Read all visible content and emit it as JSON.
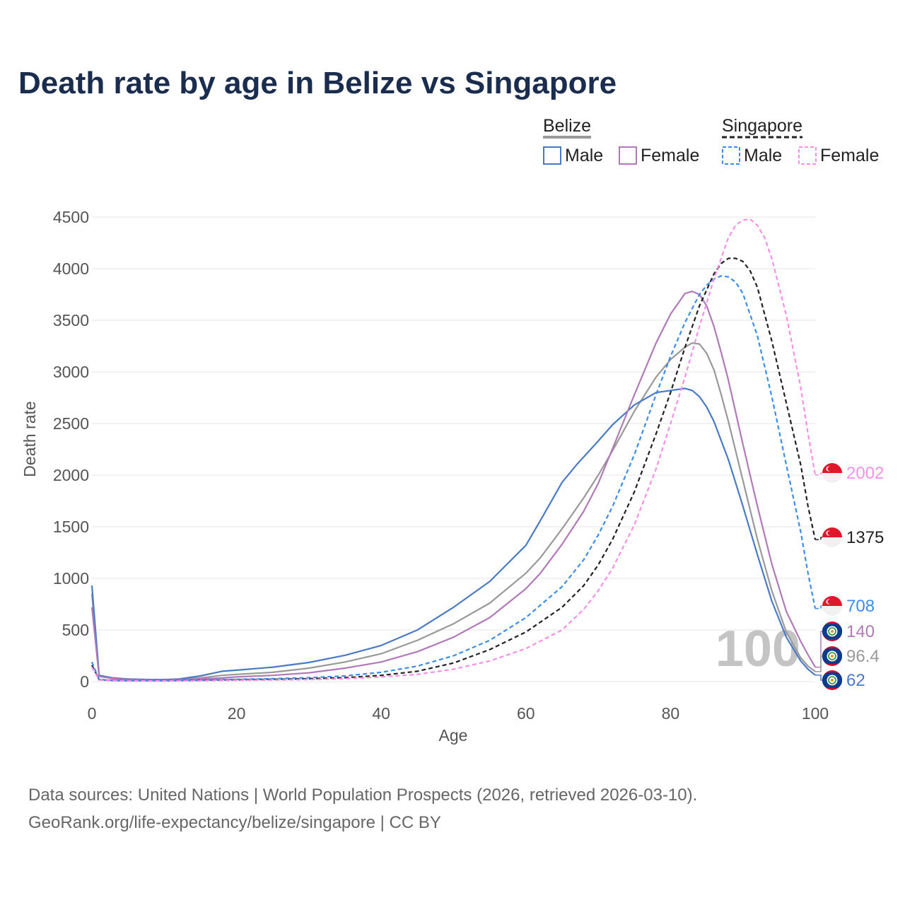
{
  "title": "Death rate by age in Belize vs Singapore",
  "source_line1": "Data sources: United Nations | World Population Prospects (2026, retrieved 2026-03-10).",
  "source_line2": "GeoRank.org/life-expectancy/belize/singapore | CC BY",
  "watermark": "100",
  "legend": {
    "belize": "Belize",
    "singapore": "Singapore",
    "male": "Male",
    "female": "Female"
  },
  "colors": {
    "belize_male": "#4a7ac4",
    "belize_female": "#b07ab8",
    "belize_total": "#999999",
    "singapore_male": "#3d8de8",
    "singapore_female": "#f590e8",
    "singapore_total": "#222222",
    "grid": "#e6e6e6",
    "title": "#1b2d4f"
  },
  "chart_data": {
    "type": "line",
    "title": "Death rate by age in Belize vs Singapore",
    "xlabel": "Age",
    "ylabel": "Death rate",
    "xlim": [
      0,
      100
    ],
    "ylim": [
      0,
      4500
    ],
    "xticks": [
      0,
      20,
      40,
      60,
      80,
      100
    ],
    "yticks": [
      0,
      500,
      1000,
      1500,
      2000,
      2500,
      3000,
      3500,
      4000,
      4500
    ],
    "grid": true,
    "series": [
      {
        "id": "belize_total",
        "name": "Belize (total)",
        "country": "Belize",
        "sex": "Total",
        "style": "solid",
        "end_label": "96.4",
        "x": [
          0,
          1,
          3,
          5,
          8,
          10,
          12,
          15,
          18,
          20,
          25,
          30,
          35,
          40,
          45,
          50,
          55,
          60,
          62,
          65,
          68,
          70,
          72,
          75,
          78,
          80,
          82,
          83,
          84,
          85,
          86,
          87,
          88,
          90,
          92,
          94,
          96,
          98,
          99,
          100
        ],
        "y": [
          850,
          55,
          30,
          22,
          18,
          18,
          20,
          35,
          60,
          70,
          90,
          130,
          190,
          270,
          400,
          560,
          760,
          1050,
          1200,
          1480,
          1780,
          2000,
          2240,
          2620,
          2950,
          3120,
          3240,
          3280,
          3270,
          3180,
          3020,
          2780,
          2520,
          1950,
          1380,
          880,
          480,
          230,
          150,
          96.4
        ]
      },
      {
        "id": "belize_male",
        "name": "Belize Male",
        "country": "Belize",
        "sex": "Male",
        "style": "solid",
        "end_label": "62",
        "x": [
          0,
          1,
          3,
          5,
          8,
          10,
          12,
          15,
          18,
          20,
          25,
          30,
          35,
          40,
          45,
          50,
          55,
          60,
          62,
          65,
          67,
          70,
          72,
          75,
          78,
          80,
          82,
          83,
          84,
          85,
          86,
          88,
          90,
          92,
          94,
          96,
          98,
          99,
          100
        ],
        "y": [
          930,
          60,
          35,
          25,
          20,
          20,
          25,
          55,
          100,
          110,
          140,
          185,
          255,
          350,
          500,
          720,
          970,
          1320,
          1560,
          1930,
          2100,
          2330,
          2490,
          2680,
          2800,
          2820,
          2840,
          2820,
          2760,
          2660,
          2520,
          2150,
          1700,
          1230,
          780,
          430,
          200,
          120,
          62
        ]
      },
      {
        "id": "belize_female",
        "name": "Belize Female",
        "country": "Belize",
        "sex": "Female",
        "style": "solid",
        "end_label": "140",
        "x": [
          0,
          1,
          3,
          5,
          8,
          10,
          12,
          15,
          18,
          20,
          25,
          30,
          35,
          40,
          45,
          50,
          55,
          60,
          62,
          65,
          68,
          70,
          72,
          75,
          78,
          80,
          82,
          83,
          84,
          85,
          86,
          87,
          88,
          90,
          92,
          94,
          96,
          98,
          99,
          100
        ],
        "y": [
          720,
          50,
          28,
          20,
          16,
          16,
          18,
          25,
          35,
          45,
          60,
          85,
          130,
          190,
          290,
          430,
          620,
          900,
          1050,
          1330,
          1650,
          1920,
          2260,
          2780,
          3280,
          3560,
          3760,
          3780,
          3750,
          3640,
          3440,
          3190,
          2920,
          2300,
          1700,
          1140,
          680,
          390,
          260,
          140
        ]
      },
      {
        "id": "singapore_total",
        "name": "Singapore (total)",
        "country": "Singapore",
        "sex": "Total",
        "style": "dashed",
        "end_label": "1375",
        "x": [
          0,
          1,
          3,
          5,
          10,
          15,
          20,
          25,
          30,
          35,
          40,
          45,
          50,
          55,
          60,
          65,
          68,
          70,
          72,
          75,
          78,
          80,
          82,
          84,
          86,
          87,
          88,
          89,
          90,
          91,
          92,
          94,
          96,
          98,
          99,
          100
        ],
        "y": [
          160,
          18,
          10,
          8,
          8,
          12,
          18,
          22,
          28,
          38,
          60,
          100,
          180,
          310,
          480,
          720,
          930,
          1130,
          1380,
          1840,
          2400,
          2800,
          3240,
          3640,
          3950,
          4050,
          4100,
          4100,
          4070,
          3980,
          3820,
          3300,
          2700,
          2100,
          1700,
          1375
        ]
      },
      {
        "id": "singapore_male",
        "name": "Singapore Male",
        "country": "Singapore",
        "sex": "Male",
        "style": "dashed",
        "end_label": "708",
        "x": [
          0,
          1,
          3,
          5,
          10,
          15,
          20,
          25,
          30,
          35,
          40,
          45,
          50,
          55,
          60,
          65,
          68,
          70,
          72,
          75,
          78,
          80,
          82,
          84,
          85,
          86,
          87,
          88,
          89,
          90,
          92,
          94,
          96,
          98,
          99,
          100
        ],
        "y": [
          190,
          20,
          12,
          10,
          10,
          15,
          22,
          28,
          38,
          55,
          90,
          150,
          250,
          400,
          620,
          920,
          1180,
          1420,
          1700,
          2200,
          2780,
          3150,
          3480,
          3750,
          3840,
          3900,
          3930,
          3920,
          3870,
          3760,
          3350,
          2760,
          2100,
          1450,
          1050,
          708
        ]
      },
      {
        "id": "singapore_female",
        "name": "Singapore Female",
        "country": "Singapore",
        "sex": "Female",
        "style": "dashed",
        "end_label": "2002",
        "x": [
          0,
          1,
          3,
          5,
          10,
          15,
          20,
          25,
          30,
          35,
          40,
          45,
          50,
          55,
          60,
          65,
          68,
          70,
          72,
          75,
          78,
          80,
          82,
          84,
          86,
          88,
          89,
          90,
          91,
          92,
          93,
          94,
          96,
          98,
          99,
          100
        ],
        "y": [
          140,
          15,
          8,
          6,
          6,
          8,
          12,
          15,
          20,
          28,
          45,
          70,
          120,
          200,
          320,
          500,
          700,
          880,
          1100,
          1520,
          2060,
          2500,
          2950,
          3440,
          3900,
          4300,
          4420,
          4470,
          4480,
          4420,
          4300,
          4100,
          3550,
          2850,
          2400,
          2002
        ]
      }
    ]
  }
}
